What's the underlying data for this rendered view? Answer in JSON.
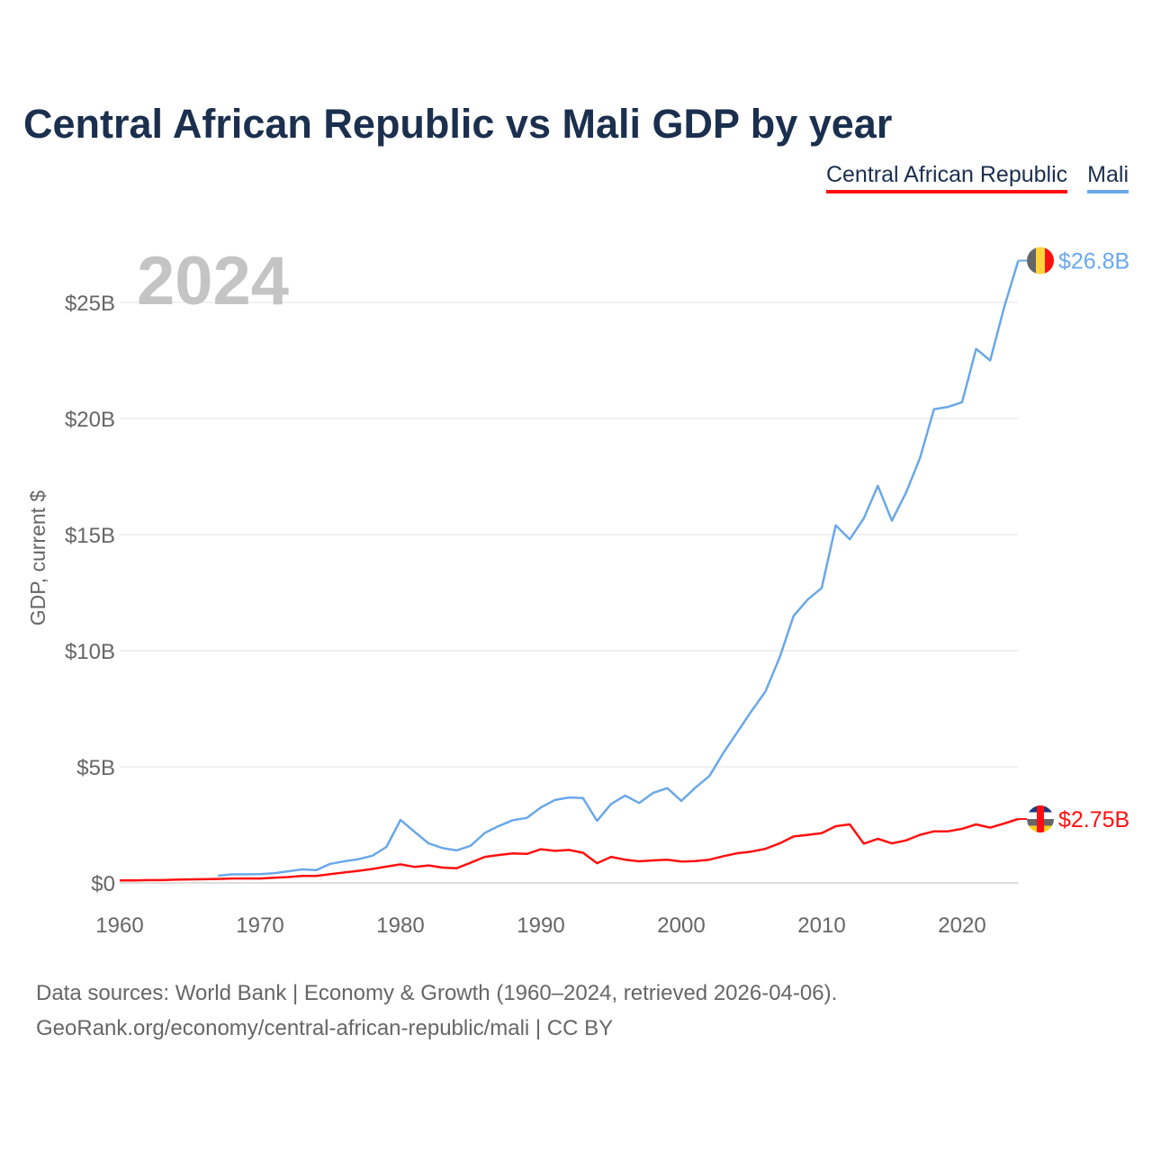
{
  "chart_data": {
    "type": "line",
    "title": "Central African Republic vs Mali GDP by year",
    "xlabel": "",
    "ylabel": "GDP, current $",
    "xlim": [
      1960,
      2024
    ],
    "ylim": [
      0,
      27
    ],
    "grid": true,
    "legend_placement": "top-right",
    "x_ticks": [
      1960,
      1970,
      1980,
      1990,
      2000,
      2010,
      2020
    ],
    "x_tick_labels": [
      "1960",
      "1970",
      "1980",
      "1990",
      "2000",
      "2010",
      "2020"
    ],
    "y_ticks": [
      0,
      5,
      10,
      15,
      20,
      25
    ],
    "y_tick_labels": [
      "$0",
      "$5B",
      "$10B",
      "$15B",
      "$20B",
      "$25B"
    ],
    "year_label": "2024",
    "series": [
      {
        "name": "Central African Republic",
        "color": "#ff1010",
        "end_label": "$2.75B",
        "start_year": 1960,
        "values": [
          0.11,
          0.11,
          0.12,
          0.12,
          0.14,
          0.15,
          0.16,
          0.17,
          0.19,
          0.19,
          0.19,
          0.22,
          0.25,
          0.3,
          0.3,
          0.38,
          0.45,
          0.52,
          0.6,
          0.7,
          0.8,
          0.69,
          0.75,
          0.66,
          0.63,
          0.87,
          1.12,
          1.2,
          1.27,
          1.25,
          1.45,
          1.38,
          1.42,
          1.3,
          0.85,
          1.12,
          1.0,
          0.93,
          0.97,
          1.0,
          0.92,
          0.94,
          1.0,
          1.15,
          1.28,
          1.35,
          1.47,
          1.7,
          2.0,
          2.07,
          2.14,
          2.44,
          2.52,
          1.69,
          1.9,
          1.7,
          1.83,
          2.07,
          2.22,
          2.22,
          2.33,
          2.52,
          2.38,
          2.56,
          2.75
        ]
      },
      {
        "name": "Mali",
        "color": "#6aa8e8",
        "end_label": "$26.8B",
        "start_year": 1967,
        "values": [
          0.31,
          0.37,
          0.37,
          0.38,
          0.42,
          0.5,
          0.58,
          0.55,
          0.82,
          0.93,
          1.02,
          1.17,
          1.55,
          2.71,
          2.2,
          1.7,
          1.5,
          1.4,
          1.6,
          2.15,
          2.45,
          2.7,
          2.8,
          3.25,
          3.57,
          3.68,
          3.65,
          2.67,
          3.4,
          3.76,
          3.44,
          3.88,
          4.08,
          3.53,
          4.1,
          4.6,
          5.6,
          6.5,
          7.4,
          8.25,
          9.7,
          11.5,
          12.2,
          12.7,
          15.4,
          14.8,
          15.7,
          17.1,
          15.6,
          16.8,
          18.3,
          20.4,
          20.5,
          20.7,
          23.0,
          22.5,
          24.8,
          26.8
        ]
      }
    ]
  },
  "footer": {
    "line1": "Data sources: World Bank | Economy & Growth (1960–2024, retrieved 2026-04-06).",
    "line2": "GeoRank.org/economy/central-african-republic/mali | CC BY"
  }
}
